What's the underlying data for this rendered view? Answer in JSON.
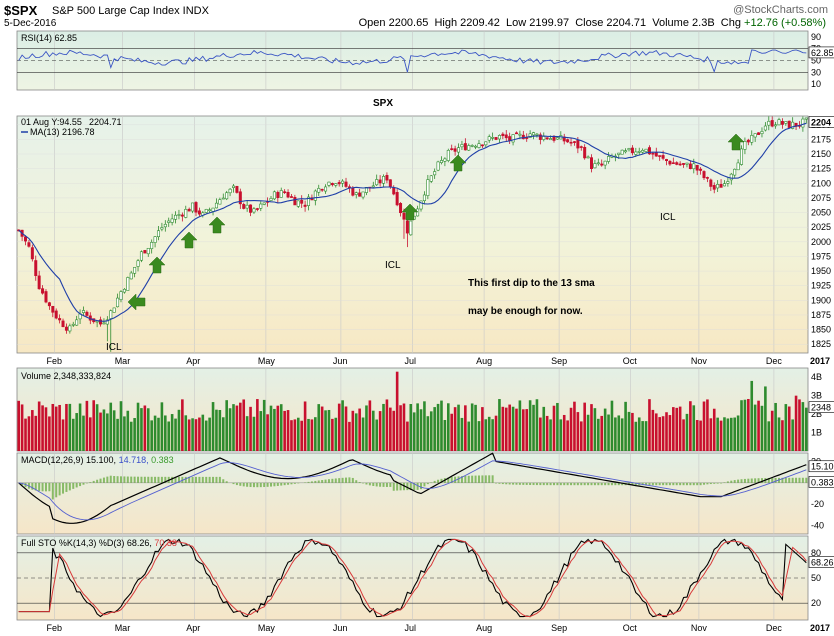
{
  "header": {
    "symbol": "$SPX",
    "name": "S&P 500 Large Cap Index INDX",
    "date": "5-Dec-2016",
    "watermark": "@StockCharts.com",
    "open_label": "Open",
    "open": "2200.65",
    "high_label": "High",
    "high": "2209.42",
    "low_label": "Low",
    "low": "2199.97",
    "close_label": "Close",
    "close": "2204.71",
    "volume_label": "Volume",
    "volume": "2.3B",
    "chg_label": "Chg",
    "chg": "+12.76 (+0.58%)"
  },
  "colors": {
    "up": "#2e8b2e",
    "down": "#c8102e",
    "ma": "#1f3fa8",
    "annot_red": "#e00000",
    "annot_blue": "#0a2fd0",
    "annot_green": "#2a8a1a",
    "arrow_green": "#3a8a1f"
  },
  "chart_data": [
    {
      "type": "candlestick",
      "panel": "price",
      "legend": {
        "ohlc_label": "01 Aug Y:94.55",
        "close_value": "2204.71",
        "ma_label": "MA(13) 2196.78"
      },
      "ylim": [
        1810,
        2215
      ],
      "y_ticks": [
        1825,
        1850,
        1875,
        1900,
        1925,
        1950,
        1975,
        2000,
        2025,
        2050,
        2075,
        2100,
        2125,
        2150,
        2175,
        2200
      ],
      "last_value_tag": "2204",
      "x_ticks": [
        "Feb",
        "Mar",
        "Apr",
        "May",
        "Jun",
        "Jul",
        "Aug",
        "Sep",
        "Oct",
        "Nov",
        "Dec",
        "2017"
      ],
      "close_anchors": [
        [
          0,
          2020
        ],
        [
          3,
          1990
        ],
        [
          6,
          1925
        ],
        [
          9,
          1890
        ],
        [
          12,
          1865
        ],
        [
          15,
          1850
        ],
        [
          18,
          1880
        ],
        [
          21,
          1870
        ],
        [
          24,
          1860
        ],
        [
          27,
          1880
        ],
        [
          30,
          1915
        ],
        [
          33,
          1945
        ],
        [
          36,
          1980
        ],
        [
          39,
          2000
        ],
        [
          42,
          2025
        ],
        [
          45,
          2040
        ],
        [
          48,
          2050
        ],
        [
          51,
          2060
        ],
        [
          54,
          2045
        ],
        [
          57,
          2060
        ],
        [
          60,
          2080
        ],
        [
          63,
          2090
        ],
        [
          66,
          2060
        ],
        [
          69,
          2050
        ],
        [
          72,
          2065
        ],
        [
          75,
          2080
        ],
        [
          78,
          2085
        ],
        [
          81,
          2070
        ],
        [
          84,
          2065
        ],
        [
          87,
          2085
        ],
        [
          90,
          2100
        ],
        [
          93,
          2105
        ],
        [
          96,
          2095
        ],
        [
          99,
          2080
        ],
        [
          102,
          2090
        ],
        [
          105,
          2100
        ],
        [
          108,
          2110
        ],
        [
          111,
          2070
        ],
        [
          114,
          2020
        ],
        [
          117,
          2060
        ],
        [
          120,
          2100
        ],
        [
          123,
          2130
        ],
        [
          126,
          2150
        ],
        [
          129,
          2160
        ],
        [
          132,
          2165
        ],
        [
          135,
          2170
        ],
        [
          138,
          2175
        ],
        [
          141,
          2180
        ],
        [
          144,
          2175
        ],
        [
          147,
          2180
        ],
        [
          150,
          2185
        ],
        [
          153,
          2180
        ],
        [
          156,
          2178
        ],
        [
          159,
          2175
        ],
        [
          162,
          2170
        ],
        [
          165,
          2160
        ],
        [
          168,
          2130
        ],
        [
          171,
          2130
        ],
        [
          174,
          2145
        ],
        [
          177,
          2150
        ],
        [
          180,
          2155
        ],
        [
          183,
          2160
        ],
        [
          186,
          2150
        ],
        [
          189,
          2140
        ],
        [
          192,
          2135
        ],
        [
          195,
          2130
        ],
        [
          198,
          2130
        ],
        [
          201,
          2110
        ],
        [
          204,
          2090
        ],
        [
          207,
          2100
        ],
        [
          210,
          2130
        ],
        [
          213,
          2165
        ],
        [
          216,
          2180
        ],
        [
          219,
          2200
        ],
        [
          222,
          2205
        ],
        [
          225,
          2200
        ],
        [
          228,
          2200
        ],
        [
          231,
          2205
        ]
      ],
      "ma_period": 13
    },
    {
      "type": "bar",
      "panel": "volume",
      "title": "Volume 2,348,333,824",
      "y_ticks": [
        "4B",
        "3B",
        "2B",
        "1B"
      ],
      "last_value_tag": "2348",
      "spikes": [
        [
          111,
          4.3
        ],
        [
          197,
          2.7
        ],
        [
          215,
          3.8
        ],
        [
          219,
          3.5
        ],
        [
          228,
          3.0
        ],
        [
          231,
          2.35
        ]
      ],
      "baseline_billion": 2.1
    },
    {
      "type": "line",
      "panel": "rsi",
      "title": "RSI(14) 62.85",
      "ylim": [
        0,
        100
      ],
      "y_ticks": [
        90,
        70,
        62.85,
        50,
        30,
        10
      ],
      "reference_lines": [
        70,
        30
      ],
      "last_value_tag": "62.85"
    },
    {
      "type": "line",
      "panel": "macd",
      "title_parts": [
        "MACD(12,26,9)",
        "15.100,",
        "14.718,",
        "0.383"
      ],
      "y_ticks": [
        20,
        15.1,
        0.383,
        -20,
        -40
      ],
      "ylim": [
        -48,
        28
      ]
    },
    {
      "type": "line",
      "panel": "stochastic",
      "title_parts": [
        "Full STO %K(14,3) %D(3)",
        "68.26,",
        "70.38"
      ],
      "ylim": [
        0,
        100
      ],
      "y_ticks": [
        80,
        68.26,
        50,
        20
      ],
      "reference_lines": [
        80,
        50,
        20
      ]
    }
  ],
  "annotations": {
    "spx_label": "SPX",
    "icl_labels": [
      "ICL",
      "ICL",
      "ICL"
    ],
    "note_line1": "This first dip to the 13 sma",
    "note_line2": "may be enough for now."
  },
  "bottom_axis": [
    "Feb",
    "Mar",
    "Apr",
    "May",
    "Jun",
    "Jul",
    "Aug",
    "Sep",
    "Oct",
    "Nov",
    "Dec",
    "2017"
  ]
}
